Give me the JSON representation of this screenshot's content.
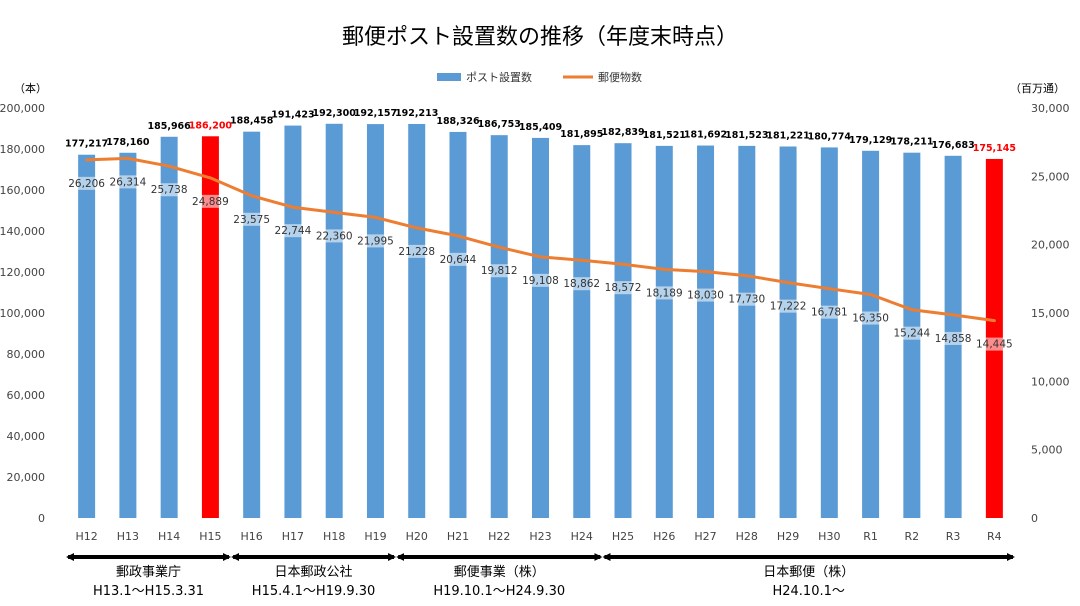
{
  "chart_data": {
    "type": "bar",
    "title": "郵便ポスト設置数の推移（年度末時点）",
    "left_unit": "（本）",
    "right_unit": "（百万通）",
    "legend_position": "top-center",
    "grid": false,
    "categories": [
      "H12",
      "H13",
      "H14",
      "H15",
      "H16",
      "H17",
      "H18",
      "H19",
      "H20",
      "H21",
      "H22",
      "H23",
      "H24",
      "H25",
      "H26",
      "H27",
      "H28",
      "H29",
      "H30",
      "R1",
      "R2",
      "R3",
      "R4"
    ],
    "series": [
      {
        "name": "ポスト設置数",
        "type": "bar",
        "axis": "left",
        "color": "#5b9bd5",
        "values": [
          177217,
          178160,
          185966,
          186200,
          188458,
          191423,
          192300,
          192157,
          192213,
          188326,
          186753,
          185409,
          181895,
          182839,
          181521,
          181692,
          181523,
          181221,
          180774,
          179129,
          178211,
          176683,
          175145
        ],
        "labels": [
          "177,217",
          "178,160",
          "185,966",
          "186,200",
          "188,458",
          "191,423",
          "192,300",
          "192,157",
          "192,213",
          "188,326",
          "186,753",
          "185,409",
          "181,895",
          "182,839",
          "181,521",
          "181,692",
          "181,523",
          "181,221",
          "180,774",
          "179,129",
          "178,211",
          "176,683",
          "175,145"
        ]
      },
      {
        "name": "郵便物数",
        "type": "line",
        "axis": "right",
        "color": "#ed7d31",
        "values": [
          26206,
          26314,
          25738,
          24889,
          23575,
          22744,
          22360,
          21995,
          21228,
          20644,
          19812,
          19108,
          18862,
          18572,
          18189,
          18030,
          17730,
          17222,
          16781,
          16350,
          15244,
          14858,
          14445
        ],
        "labels": [
          "26,206",
          "26,314",
          "25,738",
          "24,889",
          "23,575",
          "22,744",
          "22,360",
          "21,995",
          "21,228",
          "20,644",
          "19,812",
          "19,108",
          "18,862",
          "18,572",
          "18,189",
          "18,030",
          "17,730",
          "17,222",
          "16,781",
          "16,350",
          "15,244",
          "14,858",
          "14,445"
        ]
      }
    ],
    "highlight_color": "#ff0000",
    "highlight_indices": [
      3,
      22
    ],
    "y_left": {
      "range": [
        0,
        200000
      ],
      "ticks": [
        "0",
        "20,000",
        "40,000",
        "60,000",
        "80,000",
        "100,000",
        "120,000",
        "140,000",
        "160,000",
        "180,000",
        "200,000"
      ]
    },
    "y_right": {
      "range": [
        0,
        30000
      ],
      "ticks": [
        "0",
        "5,000",
        "10,000",
        "15,000",
        "20,000",
        "25,000",
        "30,000"
      ]
    },
    "eras": [
      {
        "name": "郵政事業庁",
        "period": "H13.1～H15.3.31",
        "from": "H12",
        "to": "H15"
      },
      {
        "name": "日本郵政公社",
        "period": "H15.4.1～H19.9.30",
        "from": "H16",
        "to": "H19"
      },
      {
        "name": "郵便事業（株）",
        "period": "H19.10.1～H24.9.30",
        "from": "H20",
        "to": "H24"
      },
      {
        "name": "日本郵便（株）",
        "period": "H24.10.1～",
        "from": "H25",
        "to": "R4"
      }
    ]
  }
}
